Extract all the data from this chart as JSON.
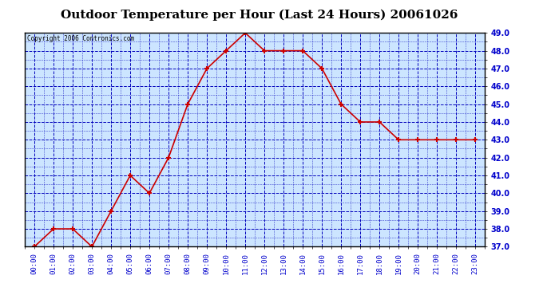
{
  "title": "Outdoor Temperature per Hour (Last 24 Hours) 20061026",
  "copyright_text": "Copyright 2006 Contronics.com",
  "hours": [
    "00:00",
    "01:00",
    "02:00",
    "03:00",
    "04:00",
    "05:00",
    "06:00",
    "07:00",
    "08:00",
    "09:00",
    "10:00",
    "11:00",
    "12:00",
    "13:00",
    "14:00",
    "15:00",
    "16:00",
    "17:00",
    "18:00",
    "19:00",
    "20:00",
    "21:00",
    "22:00",
    "23:00"
  ],
  "temperatures": [
    37.0,
    38.0,
    38.0,
    37.0,
    39.0,
    41.0,
    40.0,
    42.0,
    45.0,
    47.0,
    48.0,
    49.0,
    48.0,
    48.0,
    48.0,
    47.0,
    45.0,
    44.0,
    44.0,
    43.0,
    43.0,
    43.0,
    43.0,
    43.0
  ],
  "ylim": [
    37.0,
    49.0
  ],
  "yticks": [
    37.0,
    38.0,
    39.0,
    40.0,
    41.0,
    42.0,
    43.0,
    44.0,
    45.0,
    46.0,
    47.0,
    48.0,
    49.0
  ],
  "line_color": "#cc0000",
  "marker_color": "#cc0000",
  "plot_bg_color": "#cce5ff",
  "outer_bg_color": "#ffffff",
  "grid_color": "#0000bb",
  "title_color": "#000000",
  "title_fontsize": 11,
  "tick_label_color": "#0000cc",
  "copyright_color": "#000000"
}
